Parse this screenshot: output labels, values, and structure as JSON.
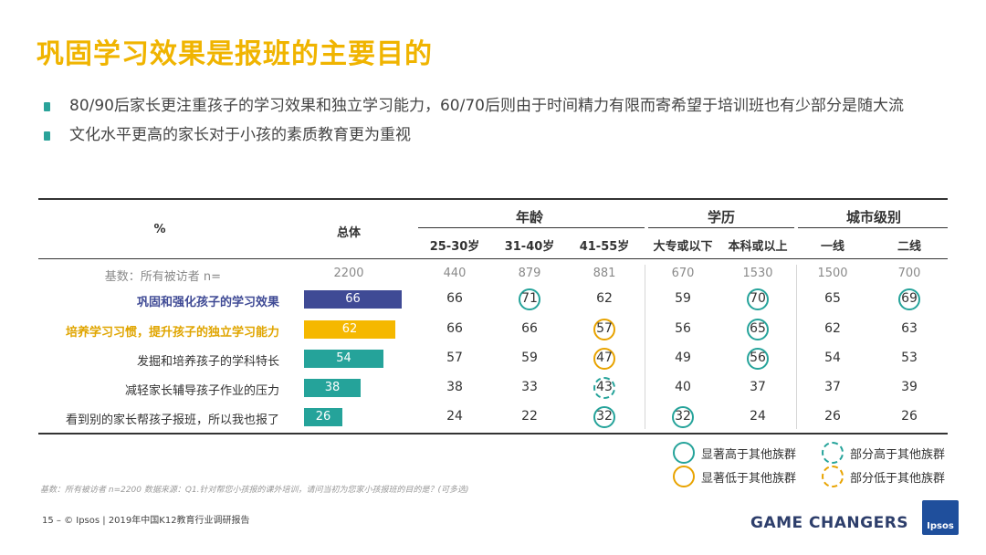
{
  "title": "巩固学习效果是报班的主要目的",
  "bullets": [
    "80/90后家长更注重孩子的学习效果和独立学习能力，60/70后则由于时间精力有限而寄希望于培训班也有少部分是随大流",
    "文化水平更高的家长对于小孩的素质教育更为重视"
  ],
  "table": {
    "percent_label": "%",
    "total_label": "总体",
    "group_age": "年龄",
    "group_edu": "学历",
    "group_city": "城市级别",
    "col_headers": [
      "25-30岁",
      "31-40岁",
      "41-55岁",
      "大专或以下",
      "本科或以上",
      "一线",
      "二线"
    ],
    "base_label": "基数：所有被访者 n=",
    "base_total": "2200",
    "base_values": [
      "440",
      "879",
      "881",
      "670",
      "1530",
      "1500",
      "700"
    ],
    "rows": [
      {
        "label": "巩固和强化孩子的学习效果",
        "total": 66,
        "values": [
          "66",
          "71",
          "62",
          "59",
          "70",
          "65",
          "69"
        ]
      },
      {
        "label": "培养学习习惯，提升孩子的独立学习能力",
        "total": 62,
        "values": [
          "66",
          "66",
          "57",
          "56",
          "65",
          "62",
          "63"
        ]
      },
      {
        "label": "发掘和培养孩子的学科特长",
        "total": 54,
        "values": [
          "57",
          "59",
          "47",
          "49",
          "56",
          "54",
          "53"
        ]
      },
      {
        "label": "减轻家长辅导孩子作业的压力",
        "total": 38,
        "values": [
          "38",
          "33",
          "43",
          "40",
          "37",
          "37",
          "39"
        ]
      },
      {
        "label": "看到别的家长帮孩子报班，所以我也报了",
        "total": 26,
        "values": [
          "24",
          "22",
          "32",
          "32",
          "24",
          "26",
          "26"
        ]
      }
    ]
  },
  "legend": {
    "sig_higher": "显著高于其他族群",
    "part_higher": "部分高于其他族群",
    "sig_lower": "显著低于其他族群",
    "part_lower": "部分低于其他族群"
  },
  "footnote": "基数：所有被访者 n=2200     数据来源：Q1.针对帮您小孩报的课外培训，请问当初为您家小孩报班的目的是？(可多选)",
  "footer": "15 –  © Ipsos | 2019年中国K12教育行业调研报告",
  "brand": "GAME CHANGERS",
  "logo_text": "Ipsos",
  "colors": {
    "title": "#f0b400",
    "bar_row1": "#3f4a95",
    "bar_row2": "#f5b800",
    "bar_other": "#25a39a",
    "label_row1": "#3f4a95",
    "label_row2": "#e0a500",
    "teal": "#25a39a",
    "orange": "#e8a300"
  }
}
